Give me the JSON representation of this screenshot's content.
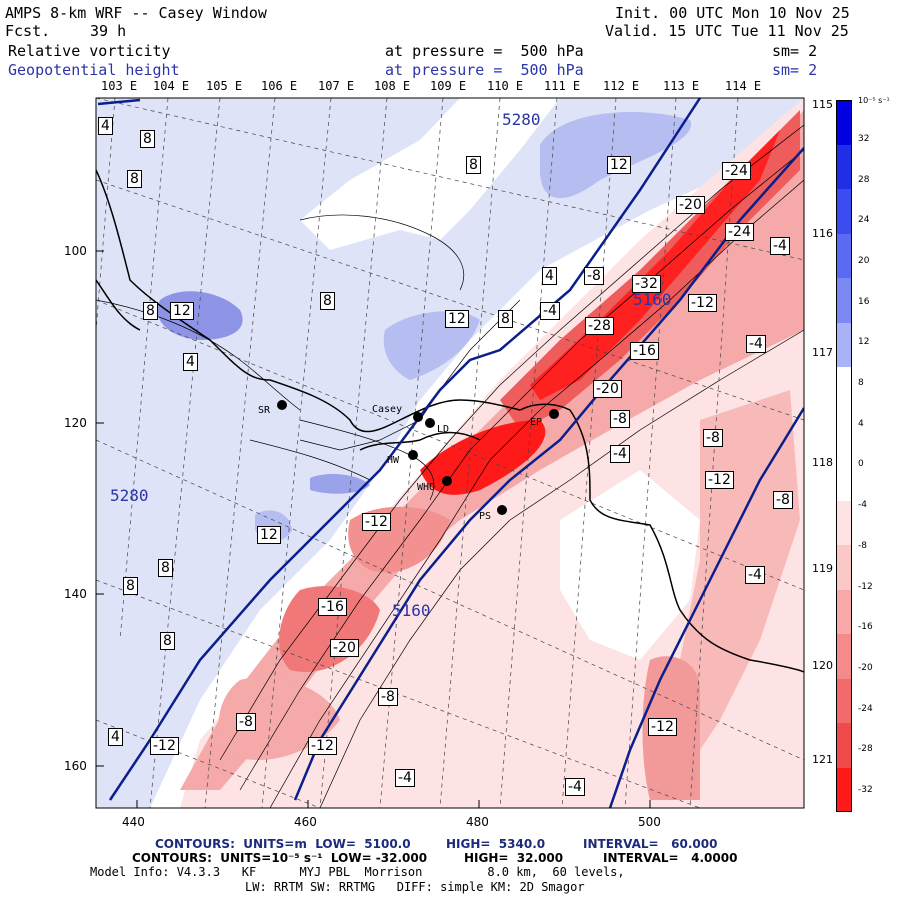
{
  "header": {
    "title": "AMPS 8-km WRF -- Casey Window",
    "fcst_label": "Fcst.",
    "fcst_value": "39 h",
    "init": "Init. 00 UTC Mon 10 Nov 25",
    "valid": "Valid. 15 UTC Tue 11 Nov 25",
    "field1_name": "Relative vorticity",
    "field1_pressure": "at pressure =  500 hPa",
    "field1_sm": "sm= 2",
    "field2_name": "Geopotential height",
    "field2_pressure": "at pressure =  500 hPa",
    "field2_sm": "sm= 2"
  },
  "colors": {
    "vort_positive": "#3a3ad6",
    "vort_negative": "#ff1a1a",
    "height_contour": "#0a1f8c",
    "coast": "#000000"
  },
  "axes": {
    "top_lon": [
      "103 E",
      "104 E",
      "105 E",
      "106 E",
      "107 E",
      "108 E",
      "109 E",
      "110 E",
      "111 E",
      "112 E",
      "113 E",
      "114 E"
    ],
    "right_lat": [
      "115 E",
      "116 E",
      "117 E",
      "118 E",
      "119 E",
      "120 E",
      "121 E"
    ],
    "y_ticks": [
      "100",
      "120",
      "140",
      "160"
    ],
    "x_ticks": [
      "440",
      "460",
      "480",
      "500"
    ]
  },
  "colorbar": {
    "unit": "10⁻⁵ s⁻¹",
    "labels": [
      "32",
      "28",
      "24",
      "20",
      "16",
      "12",
      "8",
      "4",
      "0",
      "-4",
      "-8",
      "-12",
      "-16",
      "-20",
      "-24",
      "-28",
      "-32"
    ]
  },
  "stations": [
    {
      "label": "SR"
    },
    {
      "label": "Casey"
    },
    {
      "label": "LD"
    },
    {
      "label": "HW"
    },
    {
      "label": "WHO"
    },
    {
      "label": "PS"
    },
    {
      "label": "EP"
    }
  ],
  "height_labels": [
    "5280",
    "5280",
    "5160",
    "5160"
  ],
  "vort_labels": [
    "4",
    "8",
    "8",
    "8",
    "8",
    "12",
    "8",
    "4",
    "12",
    "8",
    "4",
    "12",
    "-4",
    "-8",
    "12",
    "-32",
    "-28",
    "-12",
    "-16",
    "-20",
    "-8",
    "-4",
    "-24",
    "-20",
    "-24",
    "-4",
    "-4",
    "-8",
    "-12",
    "-8",
    "-4",
    "-12",
    "-16",
    "-20",
    "-8",
    "-12",
    "-8",
    "-4",
    "-12",
    "-4",
    "-12",
    "8",
    "8",
    "8",
    "4"
  ],
  "footer": {
    "line1_contours": "CONTOURS:  UNITS=m  LOW=  5100.0",
    "line1_high": "HIGH=  5340.0",
    "line1_interval": "INTERVAL=   60.000",
    "line2_contours": "CONTOURS:  UNITS=10⁻⁵ s⁻¹  LOW= -32.000",
    "line2_high": "HIGH=  32.000",
    "line2_interval": "INTERVAL=   4.0000",
    "line3": "Model Info: V4.3.3   KF      MYJ PBL  Morrison         8.0 km,  60 levels,",
    "line4": "LW: RRTM SW: RRTMG   DIFF: simple KM: 2D Smagor"
  }
}
